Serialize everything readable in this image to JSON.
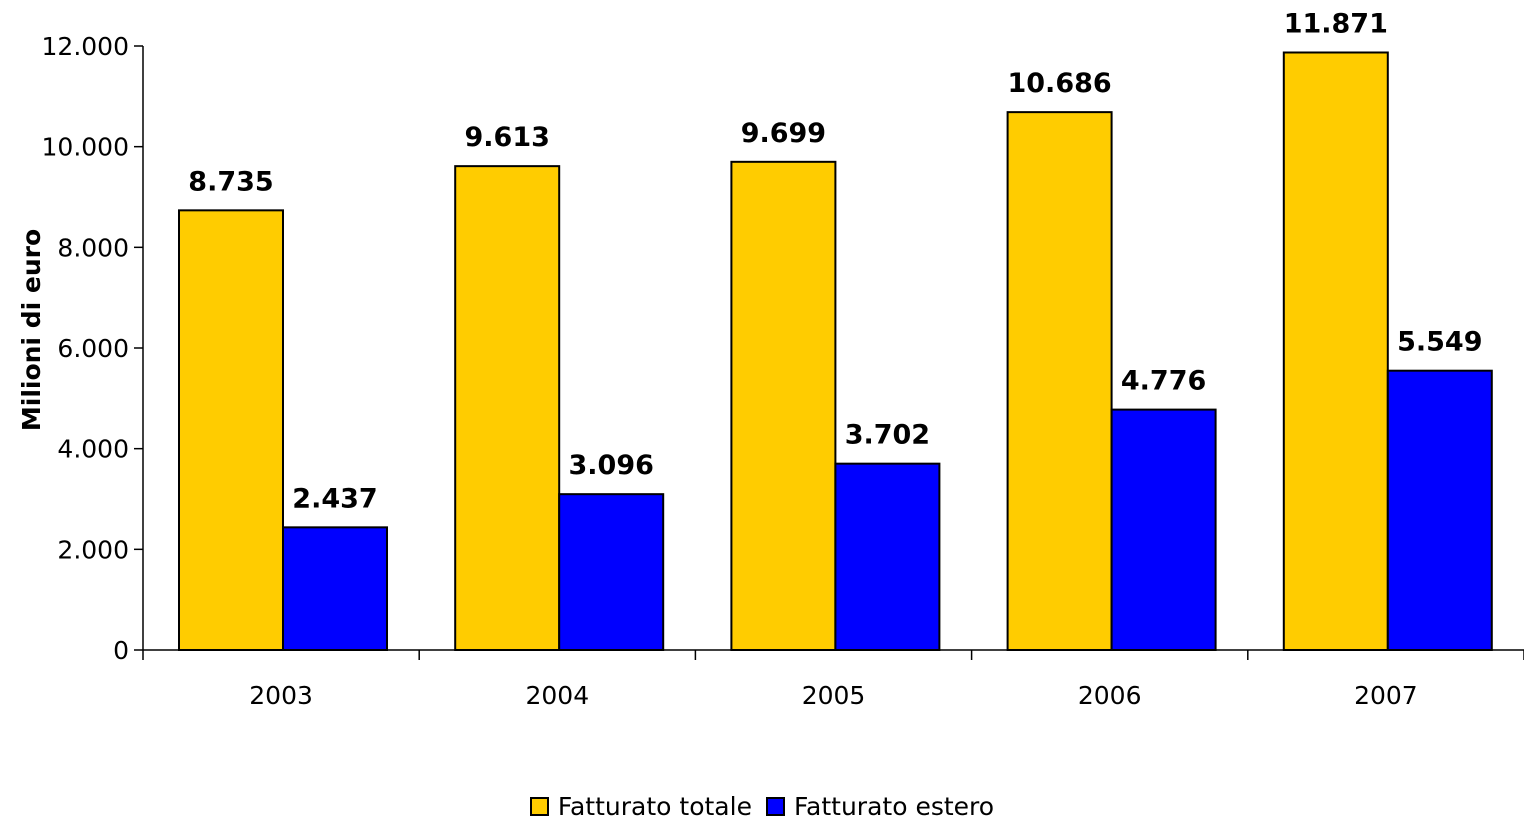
{
  "chart_data": {
    "type": "bar",
    "title": "",
    "xlabel": "",
    "ylabel": "Milioni di euro",
    "categories": [
      "2003",
      "2004",
      "2005",
      "2006",
      "2007"
    ],
    "series": [
      {
        "name": "Fatturato totale",
        "color": "#FFCC00",
        "values": [
          8735,
          9613,
          9699,
          10686,
          11871
        ],
        "labels": [
          "8.735",
          "9.613",
          "9.699",
          "10.686",
          "11.871"
        ]
      },
      {
        "name": "Fatturato estero",
        "color": "#0000FF",
        "values": [
          2437,
          3096,
          3702,
          4776,
          5549
        ],
        "labels": [
          "2.437",
          "3.096",
          "3.702",
          "4.776",
          "5.549"
        ]
      }
    ],
    "ylim": [
      0,
      12000
    ],
    "yticks": [
      0,
      2000,
      4000,
      6000,
      8000,
      10000,
      12000
    ],
    "ytick_labels": [
      "0",
      "2.000",
      "4.000",
      "6.000",
      "8.000",
      "10.000",
      "12.000"
    ],
    "grid": false,
    "legend_position": "bottom-center"
  }
}
